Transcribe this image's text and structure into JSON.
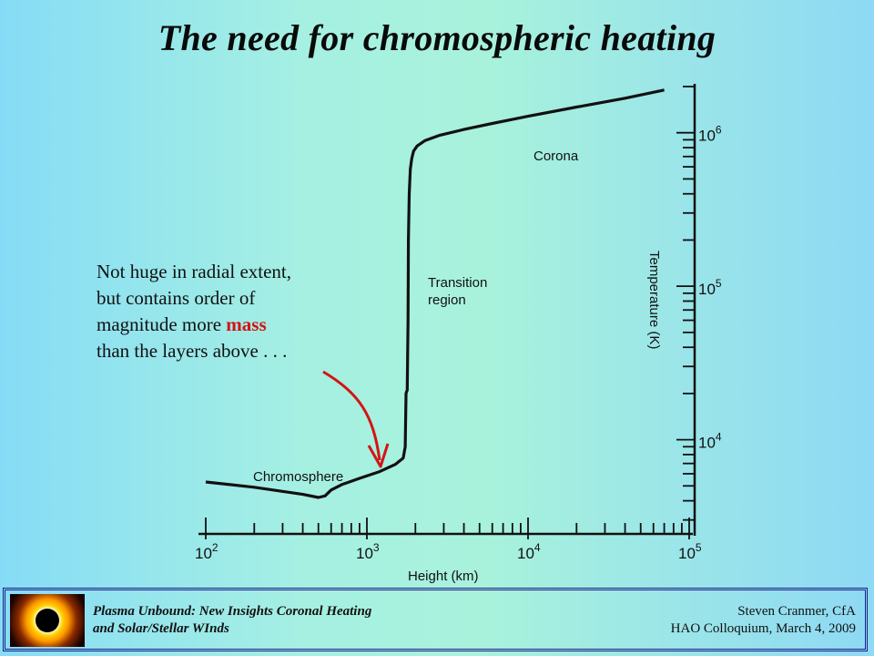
{
  "title": "The need for chromospheric heating",
  "annotation": {
    "lines": [
      "Not huge in radial extent,",
      "but contains order of",
      "magnitude more ",
      "than the layers above . . ."
    ],
    "highlight": "mass",
    "highlight_color": "#d41414"
  },
  "footer": {
    "left_line1": "Plasma Unbound:  New Insights Coronal Heating",
    "left_line2": "and Solar/Stellar WInds",
    "right_line1": "Steven Cranmer,  CfA",
    "right_line2": "HAO Colloquium, March 4, 2009",
    "icon": "solar-eclipse-image"
  },
  "chart_data": {
    "type": "line",
    "xlabel": "Height (km)",
    "ylabel": "Temperature (K)",
    "x_scale": "log",
    "y_scale": "log",
    "xlim": [
      100,
      100000
    ],
    "ylim": [
      2500,
      2000000
    ],
    "x_tick_labels": [
      {
        "base": "10",
        "exp": "2"
      },
      {
        "base": "10",
        "exp": "3"
      },
      {
        "base": "10",
        "exp": "4"
      },
      {
        "base": "10",
        "exp": "5"
      }
    ],
    "y_tick_labels": [
      {
        "base": "10",
        "exp": "4"
      },
      {
        "base": "10",
        "exp": "5"
      },
      {
        "base": "10",
        "exp": "6"
      }
    ],
    "y_axis_side": "right",
    "grid": false,
    "region_labels": [
      "Chromosphere",
      "Transition region",
      "Corona"
    ],
    "series": [
      {
        "x": [
          100,
          200,
          400,
          500,
          550,
          600,
          700,
          900,
          1200,
          1500,
          1680,
          1730,
          1750,
          1760,
          1780,
          1800,
          1810,
          1830,
          1860,
          1900,
          1950,
          2050,
          2300,
          2800,
          4000,
          6000,
          10000,
          20000,
          40000,
          70000
        ],
        "y": [
          5300,
          4900,
          4400,
          4200,
          4300,
          4700,
          5100,
          5600,
          6200,
          6900,
          7600,
          9000,
          20000,
          20500,
          21000,
          60000,
          200000,
          400000,
          580000,
          680000,
          760000,
          820000,
          890000,
          960000,
          1050000,
          1150000,
          1280000,
          1470000,
          1680000,
          1900000
        ]
      }
    ]
  }
}
